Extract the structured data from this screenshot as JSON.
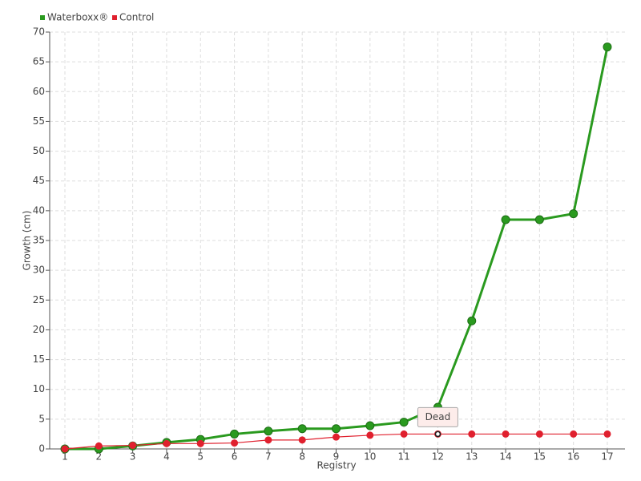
{
  "chart_data": {
    "type": "line",
    "x_label": "Registry",
    "y_label": "Growth (cm)",
    "categories": [
      "1",
      "2",
      "3",
      "4",
      "5",
      "6",
      "7",
      "8",
      "9",
      "10",
      "11",
      "12",
      "13",
      "14",
      "15",
      "16",
      "17"
    ],
    "series": [
      {
        "name": "Waterboxx®",
        "color": "#2a9a1f",
        "values": [
          0,
          0,
          0.5,
          1.1,
          1.6,
          2.5,
          3.0,
          3.4,
          3.4,
          3.9,
          4.5,
          7.0,
          21.5,
          38.5,
          38.5,
          39.5,
          67.5
        ]
      },
      {
        "name": "Control",
        "color": "#e0202e",
        "values": [
          0,
          0.5,
          0.6,
          0.9,
          0.9,
          1.0,
          1.5,
          1.5,
          2.0,
          2.3,
          2.5,
          2.5,
          2.5,
          2.5,
          2.5,
          2.5,
          2.5
        ]
      }
    ],
    "annotations": [
      {
        "text": "Dead",
        "category": "12",
        "series": "Control"
      }
    ],
    "ylim": [
      0,
      70
    ],
    "yticks": [
      0,
      5,
      10,
      15,
      20,
      25,
      30,
      35,
      40,
      45,
      50,
      55,
      60,
      65,
      70
    ],
    "grid": true,
    "legend": "top-left"
  }
}
